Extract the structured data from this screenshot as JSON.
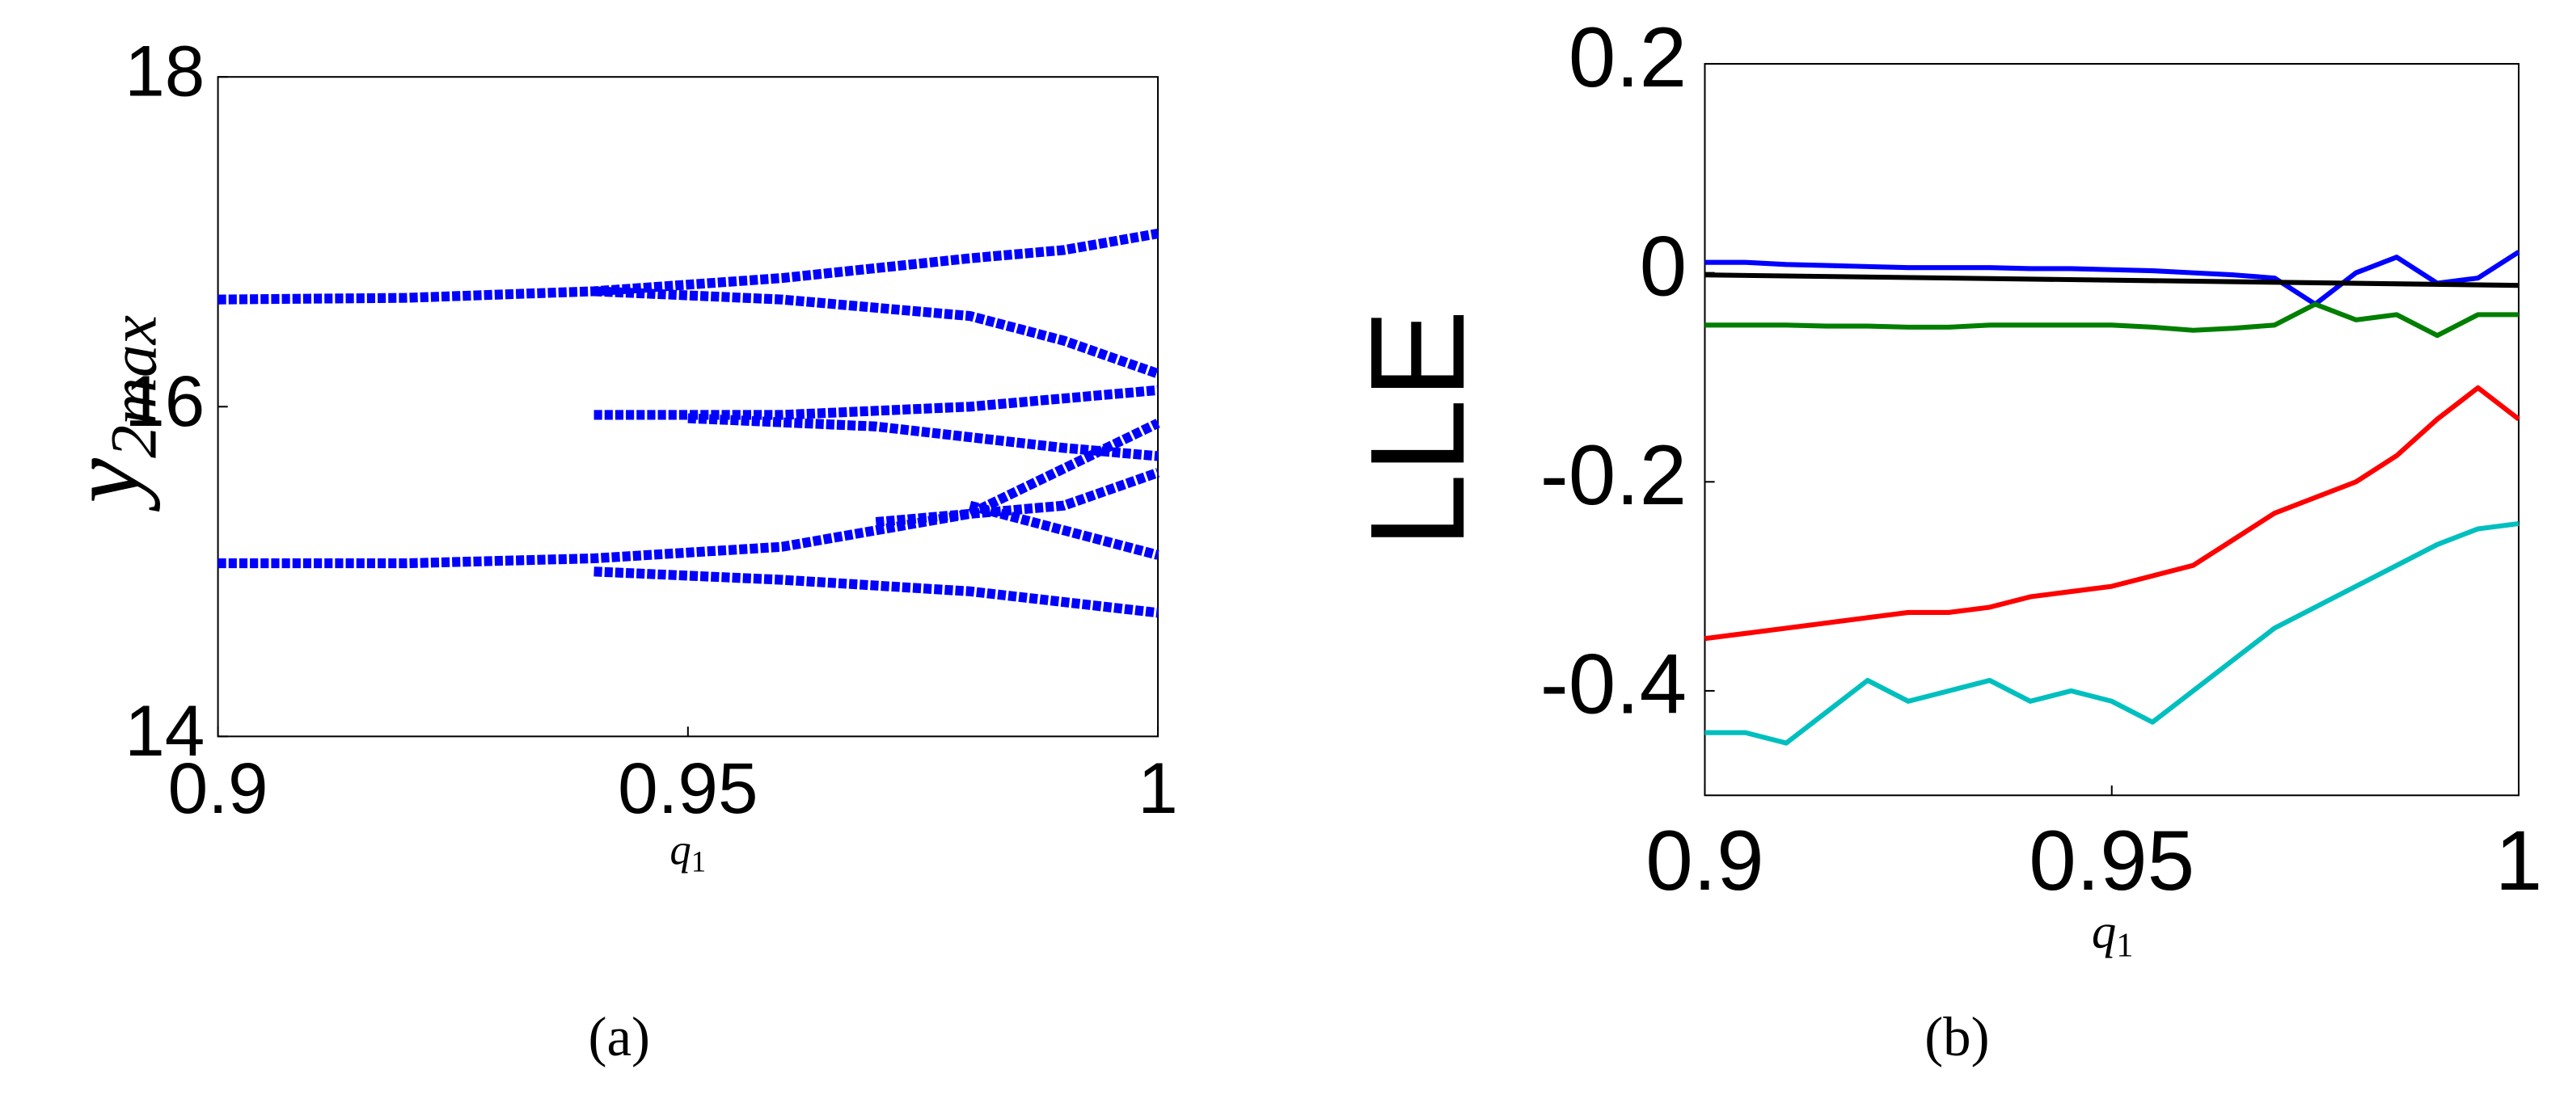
{
  "chart_data": [
    {
      "type": "scatter",
      "caption": "(a)",
      "ylabel": "y",
      "ylabel_sub": "2max",
      "xlabel": "q",
      "xlabel_sub": "1",
      "xlim": [
        0.9,
        1
      ],
      "ylim": [
        14,
        18
      ],
      "xticks": [
        0.9,
        0.95,
        1
      ],
      "yticks": [
        14,
        16,
        18
      ],
      "series": [
        {
          "color": "#0000ff",
          "x": [
            0.9,
            0.92,
            0.94,
            0.96,
            0.98,
            0.99,
            1
          ],
          "values": [
            16.65,
            16.66,
            16.7,
            16.78,
            16.9,
            16.95,
            17.05
          ]
        },
        {
          "color": "#0000ff",
          "x": [
            0.94,
            0.96,
            0.98,
            0.99,
            1
          ],
          "values": [
            16.7,
            16.65,
            16.55,
            16.4,
            16.2
          ]
        },
        {
          "color": "#0000ff",
          "x": [
            0.9,
            0.92,
            0.94,
            0.96,
            0.98,
            1
          ],
          "values": [
            15.05,
            15.05,
            15.08,
            15.15,
            15.35,
            15.9
          ]
        },
        {
          "color": "#0000ff",
          "x": [
            0.94,
            0.96,
            0.98,
            1
          ],
          "values": [
            15.0,
            14.95,
            14.88,
            14.75
          ]
        },
        {
          "color": "#0000ff",
          "x": [
            0.94,
            0.96,
            0.98,
            1
          ],
          "values": [
            15.95,
            15.95,
            16.0,
            16.1
          ]
        },
        {
          "color": "#0000ff",
          "x": [
            0.95,
            0.97,
            0.99,
            1
          ],
          "values": [
            15.93,
            15.88,
            15.75,
            15.7
          ]
        },
        {
          "color": "#0000ff",
          "x": [
            0.97,
            0.99,
            1
          ],
          "values": [
            15.3,
            15.4,
            15.6
          ]
        },
        {
          "color": "#0000ff",
          "x": [
            0.98,
            0.99,
            1
          ],
          "values": [
            15.4,
            15.25,
            15.1
          ]
        }
      ]
    },
    {
      "type": "line",
      "caption": "(b)",
      "ylabel": "LLE",
      "xlabel": "q",
      "xlabel_sub": "1",
      "xlim": [
        0.9,
        1
      ],
      "ylim": [
        -0.5,
        0.2
      ],
      "xticks": [
        0.9,
        0.95,
        1
      ],
      "yticks": [
        -0.4,
        -0.2,
        0,
        0.2
      ],
      "x": [
        0.9,
        0.905,
        0.91,
        0.915,
        0.92,
        0.925,
        0.93,
        0.935,
        0.94,
        0.945,
        0.95,
        0.955,
        0.96,
        0.965,
        0.97,
        0.975,
        0.98,
        0.985,
        0.99,
        0.995,
        1
      ],
      "series": [
        {
          "color": "#0000ff",
          "values": [
            0.01,
            0.01,
            0.008,
            0.007,
            0.006,
            0.005,
            0.005,
            0.005,
            0.004,
            0.004,
            0.003,
            0.002,
            0,
            -0.002,
            -0.005,
            -0.03,
            0,
            0.015,
            -0.01,
            -0.005,
            0.02
          ]
        },
        {
          "color": "#007f00",
          "values": [
            -0.05,
            -0.05,
            -0.05,
            -0.051,
            -0.051,
            -0.052,
            -0.052,
            -0.05,
            -0.05,
            -0.05,
            -0.05,
            -0.052,
            -0.055,
            -0.053,
            -0.05,
            -0.03,
            -0.045,
            -0.04,
            -0.06,
            -0.04,
            -0.04
          ]
        },
        {
          "color": "#ff0000",
          "values": [
            -0.35,
            -0.345,
            -0.34,
            -0.335,
            -0.33,
            -0.325,
            -0.325,
            -0.32,
            -0.31,
            -0.305,
            -0.3,
            -0.29,
            -0.28,
            -0.255,
            -0.23,
            -0.215,
            -0.2,
            -0.175,
            -0.14,
            -0.11,
            -0.14
          ]
        },
        {
          "color": "#00bfbf",
          "values": [
            -0.44,
            -0.44,
            -0.45,
            -0.42,
            -0.39,
            -0.41,
            -0.4,
            -0.39,
            -0.41,
            -0.4,
            -0.41,
            -0.43,
            -0.4,
            -0.37,
            -0.34,
            -0.32,
            -0.3,
            -0.28,
            -0.26,
            -0.245,
            -0.24
          ]
        },
        {
          "color": "#000000",
          "x": [
            0.9,
            1
          ],
          "values": [
            -0.002,
            -0.012
          ]
        }
      ]
    }
  ]
}
